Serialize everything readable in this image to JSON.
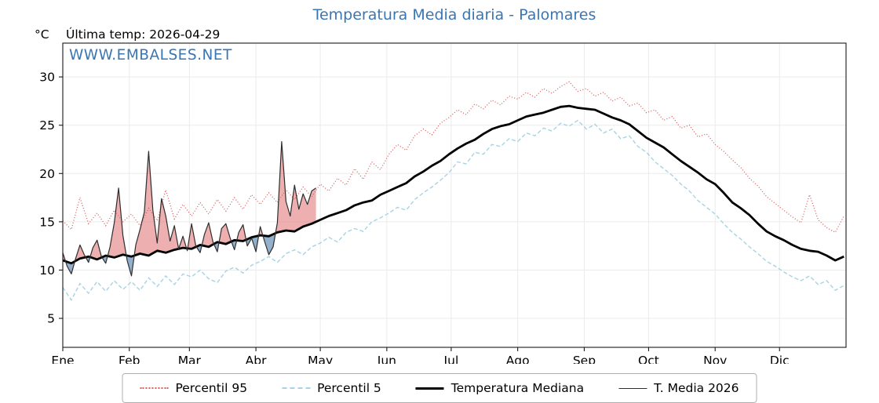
{
  "header": {
    "title": "Temperatura Media diaria - Palomares",
    "y_unit": "°C",
    "last_temp_label": "Última temp: 2026-04-29",
    "watermark": "WWW.EMBALSES.NET"
  },
  "colors": {
    "title": "#3a76b4",
    "watermark": "#3a76b4",
    "p95": "#d45f5f",
    "p5": "#a7d3e3",
    "median": "#000000",
    "t2026": "#2e2e2e",
    "fill_above": "rgba(222,110,110,0.55)",
    "fill_below": "rgba(92,134,176,0.65)",
    "grid": "#ebebeb",
    "axis": "#1a1a1a"
  },
  "legend": [
    {
      "label": "Percentil 95",
      "style": "dotted",
      "color": "#d45f5f",
      "width": 2
    },
    {
      "label": "Percentil 5",
      "style": "dashed",
      "color": "#a7d3e3",
      "width": 2
    },
    {
      "label": "Temperatura Mediana",
      "style": "solid",
      "color": "#000000",
      "width": 3
    },
    {
      "label": "T. Media 2026",
      "style": "solid",
      "color": "#2e2e2e",
      "width": 1.5
    }
  ],
  "chart_data": {
    "type": "line",
    "title": "Temperatura Media diaria - Palomares",
    "ylabel": "°C",
    "x_unit": "day_of_year",
    "xlim": [
      1,
      366
    ],
    "ylim": [
      2,
      33.5
    ],
    "yticks": [
      5,
      10,
      15,
      20,
      25,
      30
    ],
    "xticks": {
      "days": [
        1,
        32,
        60,
        91,
        121,
        152,
        182,
        213,
        244,
        274,
        305,
        335
      ],
      "labels": [
        "Ene",
        "Feb",
        "Mar",
        "Abr",
        "May",
        "Jun",
        "Jul",
        "Ago",
        "Sep",
        "Oct",
        "Nov",
        "Dic"
      ]
    },
    "grid": true,
    "legend_position": "bottom",
    "series": [
      {
        "name": "Percentil 95",
        "x": [
          1,
          5,
          9,
          13,
          17,
          21,
          25,
          29,
          33,
          37,
          41,
          45,
          49,
          53,
          57,
          61,
          65,
          69,
          73,
          77,
          81,
          85,
          89,
          93,
          97,
          101,
          105,
          109,
          113,
          117,
          121,
          125,
          129,
          133,
          137,
          141,
          145,
          149,
          153,
          157,
          161,
          165,
          169,
          173,
          177,
          181,
          185,
          189,
          193,
          197,
          201,
          205,
          209,
          213,
          217,
          221,
          225,
          229,
          233,
          237,
          241,
          245,
          249,
          253,
          257,
          261,
          265,
          269,
          273,
          277,
          281,
          285,
          289,
          293,
          297,
          301,
          305,
          309,
          313,
          317,
          321,
          325,
          329,
          333,
          337,
          341,
          345,
          349,
          353,
          357,
          361,
          365
        ],
        "values": [
          15.1,
          14.2,
          17.5,
          14.8,
          15.9,
          14.6,
          16.2,
          15.0,
          15.8,
          14.6,
          16.4,
          15.1,
          18.3,
          15.3,
          16.8,
          15.6,
          17.0,
          15.8,
          17.3,
          16.1,
          17.5,
          16.3,
          17.8,
          16.8,
          18.0,
          17.0,
          18.3,
          17.3,
          18.6,
          17.6,
          18.9,
          18.2,
          19.5,
          18.8,
          20.5,
          19.4,
          21.2,
          20.4,
          22.0,
          23.0,
          22.4,
          23.9,
          24.6,
          24.0,
          25.2,
          25.8,
          26.6,
          26.1,
          27.2,
          26.7,
          27.6,
          27.1,
          28.0,
          27.7,
          28.4,
          27.9,
          28.8,
          28.3,
          29.0,
          29.5,
          28.5,
          28.8,
          28.0,
          28.4,
          27.5,
          27.9,
          27.0,
          27.3,
          26.3,
          26.6,
          25.5,
          25.9,
          24.7,
          25.0,
          23.8,
          24.1,
          23.0,
          22.3,
          21.4,
          20.6,
          19.5,
          18.7,
          17.6,
          16.9,
          16.2,
          15.5,
          14.9,
          17.8,
          15.2,
          14.4,
          13.9,
          15.6
        ]
      },
      {
        "name": "Percentil 5",
        "x": [
          1,
          5,
          9,
          13,
          17,
          21,
          25,
          29,
          33,
          37,
          41,
          45,
          49,
          53,
          57,
          61,
          65,
          69,
          73,
          77,
          81,
          85,
          89,
          93,
          97,
          101,
          105,
          109,
          113,
          117,
          121,
          125,
          129,
          133,
          137,
          141,
          145,
          149,
          153,
          157,
          161,
          165,
          169,
          173,
          177,
          181,
          185,
          189,
          193,
          197,
          201,
          205,
          209,
          213,
          217,
          221,
          225,
          229,
          233,
          237,
          241,
          245,
          249,
          253,
          257,
          261,
          265,
          269,
          273,
          277,
          281,
          285,
          289,
          293,
          297,
          301,
          305,
          309,
          313,
          317,
          321,
          325,
          329,
          333,
          337,
          341,
          345,
          349,
          353,
          357,
          361,
          365
        ],
        "values": [
          8.2,
          6.9,
          8.6,
          7.6,
          8.8,
          7.8,
          8.9,
          8.0,
          8.8,
          7.9,
          9.2,
          8.3,
          9.4,
          8.5,
          9.6,
          9.3,
          10.0,
          9.1,
          8.7,
          9.9,
          10.3,
          9.7,
          10.5,
          10.9,
          11.4,
          10.8,
          11.7,
          12.1,
          11.6,
          12.4,
          12.8,
          13.4,
          12.9,
          13.9,
          14.3,
          14.0,
          15.0,
          15.4,
          15.9,
          16.5,
          16.2,
          17.3,
          18.0,
          18.6,
          19.3,
          20.1,
          21.2,
          21.0,
          22.2,
          22.0,
          23.0,
          22.8,
          23.6,
          23.3,
          24.2,
          23.9,
          24.7,
          24.4,
          25.2,
          24.9,
          25.5,
          24.6,
          25.1,
          24.2,
          24.6,
          23.6,
          23.9,
          22.8,
          22.2,
          21.2,
          20.5,
          19.8,
          18.9,
          18.2,
          17.2,
          16.5,
          15.8,
          14.8,
          13.9,
          13.2,
          12.4,
          11.7,
          10.9,
          10.4,
          9.8,
          9.3,
          8.9,
          9.4,
          8.5,
          8.9,
          7.9,
          8.4
        ]
      },
      {
        "name": "Temperatura Mediana",
        "x": [
          1,
          5,
          9,
          13,
          17,
          21,
          25,
          29,
          33,
          37,
          41,
          45,
          49,
          53,
          57,
          61,
          65,
          69,
          73,
          77,
          81,
          85,
          89,
          93,
          97,
          101,
          105,
          109,
          113,
          117,
          121,
          125,
          129,
          133,
          137,
          141,
          145,
          149,
          153,
          157,
          161,
          165,
          169,
          173,
          177,
          181,
          185,
          189,
          193,
          197,
          201,
          205,
          209,
          213,
          217,
          221,
          225,
          229,
          233,
          237,
          241,
          245,
          249,
          253,
          257,
          261,
          265,
          269,
          273,
          277,
          281,
          285,
          289,
          293,
          297,
          301,
          305,
          309,
          313,
          317,
          321,
          325,
          329,
          333,
          337,
          341,
          345,
          349,
          353,
          357,
          361,
          365
        ],
        "values": [
          11.0,
          10.7,
          11.2,
          11.4,
          11.1,
          11.5,
          11.3,
          11.6,
          11.4,
          11.7,
          11.5,
          12.0,
          11.8,
          12.1,
          12.3,
          12.2,
          12.6,
          12.4,
          12.9,
          12.7,
          13.1,
          13.0,
          13.4,
          13.6,
          13.5,
          13.9,
          14.1,
          14.0,
          14.5,
          14.8,
          15.2,
          15.6,
          15.9,
          16.2,
          16.7,
          17.0,
          17.2,
          17.8,
          18.2,
          18.6,
          19.0,
          19.7,
          20.2,
          20.8,
          21.3,
          22.0,
          22.6,
          23.1,
          23.5,
          24.1,
          24.6,
          24.9,
          25.1,
          25.5,
          25.9,
          26.1,
          26.3,
          26.6,
          26.9,
          27.0,
          26.8,
          26.7,
          26.6,
          26.2,
          25.8,
          25.5,
          25.1,
          24.4,
          23.7,
          23.2,
          22.7,
          22.0,
          21.3,
          20.7,
          20.1,
          19.4,
          18.9,
          18.0,
          17.0,
          16.4,
          15.7,
          14.8,
          14.0,
          13.5,
          13.1,
          12.6,
          12.2,
          12.0,
          11.9,
          11.5,
          11.0,
          11.4
        ]
      },
      {
        "name": "T. Media 2026",
        "x": [
          1,
          3,
          5,
          7,
          9,
          11,
          13,
          15,
          17,
          19,
          21,
          23,
          25,
          27,
          29,
          31,
          33,
          35,
          37,
          39,
          41,
          43,
          45,
          47,
          49,
          51,
          53,
          55,
          57,
          59,
          61,
          63,
          65,
          67,
          69,
          71,
          73,
          75,
          77,
          79,
          81,
          83,
          85,
          87,
          89,
          91,
          93,
          95,
          97,
          99,
          101,
          103,
          105,
          107,
          109,
          111,
          113,
          115,
          117,
          119
        ],
        "values": [
          11.8,
          10.4,
          9.6,
          11.2,
          12.6,
          11.6,
          10.8,
          12.3,
          13.1,
          11.4,
          10.7,
          12.4,
          14.9,
          18.5,
          13.6,
          11.0,
          9.4,
          12.6,
          14.2,
          16.0,
          22.3,
          16.2,
          12.8,
          17.4,
          15.6,
          13.0,
          14.6,
          12.2,
          13.5,
          12.0,
          14.8,
          12.5,
          11.8,
          13.7,
          14.9,
          12.9,
          11.9,
          14.3,
          14.8,
          13.3,
          12.1,
          13.9,
          14.7,
          12.5,
          13.3,
          11.9,
          14.5,
          13.0,
          11.6,
          12.4,
          14.9,
          23.3,
          17.1,
          15.6,
          18.8,
          16.3,
          17.9,
          16.8,
          18.2,
          18.5
        ]
      }
    ]
  }
}
